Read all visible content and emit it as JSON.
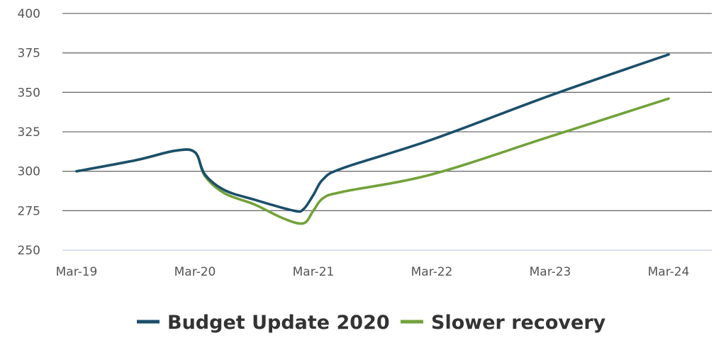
{
  "chart_data": {
    "type": "line",
    "title": "",
    "xlabel": "",
    "ylabel": "",
    "ylim": [
      250,
      400
    ],
    "yticks": [
      250,
      275,
      300,
      325,
      350,
      375,
      400
    ],
    "xtick_labels": [
      "Mar-19",
      "Mar-20",
      "Mar-21",
      "Mar-22",
      "Mar-23",
      "Mar-24"
    ],
    "grid": true,
    "legend": "bottom",
    "series": [
      {
        "name": "Budget Update 2020",
        "color": "#1b4f6b",
        "points": [
          [
            "Mar-19",
            300
          ],
          [
            "Sep-19",
            307
          ],
          [
            "Jan-20",
            313
          ],
          [
            "Mar-20",
            312
          ],
          [
            "Apr-20",
            298
          ],
          [
            "Jun-20",
            288
          ],
          [
            "Sep-20",
            282
          ],
          [
            "Jan-21",
            275
          ],
          [
            "Feb-21",
            276
          ],
          [
            "Mar-21",
            285
          ],
          [
            "Apr-21",
            295
          ],
          [
            "Jun-21",
            302
          ],
          [
            "Mar-22",
            320
          ],
          [
            "Mar-23",
            348
          ],
          [
            "Mar-24",
            374
          ]
        ]
      },
      {
        "name": "Slower recovery",
        "color": "#72a23a",
        "points": [
          [
            "Mar-19",
            300
          ],
          [
            "Sep-19",
            307
          ],
          [
            "Jan-20",
            313
          ],
          [
            "Mar-20",
            312
          ],
          [
            "Apr-20",
            297
          ],
          [
            "Jun-20",
            286
          ],
          [
            "Sep-20",
            279
          ],
          [
            "Dec-20",
            270
          ],
          [
            "Feb-21",
            267
          ],
          [
            "Mar-21",
            275
          ],
          [
            "Apr-21",
            283
          ],
          [
            "Jun-21",
            287
          ],
          [
            "Mar-22",
            298
          ],
          [
            "Mar-23",
            322
          ],
          [
            "Mar-24",
            346
          ]
        ]
      }
    ]
  }
}
